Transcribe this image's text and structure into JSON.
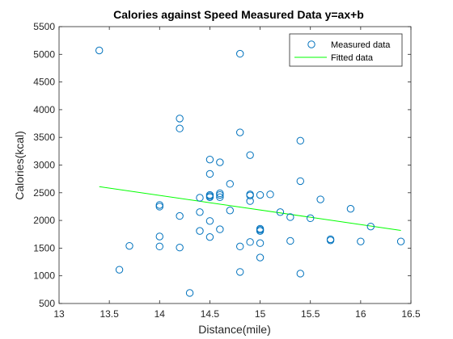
{
  "chart_data": {
    "type": "scatter",
    "title": "Calories against Speed Measured Data y=ax+b",
    "xlabel": "Distance(mile)",
    "ylabel": "Calories(kcal)",
    "xlim": [
      13,
      16.5
    ],
    "ylim": [
      500,
      5500
    ],
    "xticks": [
      "13",
      "13.5",
      "14",
      "14.5",
      "15",
      "15.5",
      "16",
      "16.5"
    ],
    "yticks": [
      "500",
      "1000",
      "1500",
      "2000",
      "2500",
      "3000",
      "3500",
      "4000",
      "4500",
      "5000",
      "5500"
    ],
    "grid": false,
    "legend_position": "top-right",
    "series": [
      {
        "name": "Measured data",
        "kind": "markers",
        "color": "#0072BD",
        "points": [
          [
            13.4,
            5070
          ],
          [
            13.6,
            1110
          ],
          [
            13.7,
            1540
          ],
          [
            14.0,
            2280
          ],
          [
            14.0,
            2250
          ],
          [
            14.0,
            1710
          ],
          [
            14.0,
            1530
          ],
          [
            14.2,
            3840
          ],
          [
            14.2,
            3660
          ],
          [
            14.2,
            2080
          ],
          [
            14.2,
            1510
          ],
          [
            14.3,
            690
          ],
          [
            14.4,
            2410
          ],
          [
            14.4,
            2150
          ],
          [
            14.4,
            1810
          ],
          [
            14.5,
            3100
          ],
          [
            14.5,
            2840
          ],
          [
            14.5,
            2460
          ],
          [
            14.5,
            2440
          ],
          [
            14.5,
            2420
          ],
          [
            14.5,
            1990
          ],
          [
            14.5,
            1700
          ],
          [
            14.6,
            3050
          ],
          [
            14.6,
            2490
          ],
          [
            14.6,
            2460
          ],
          [
            14.6,
            2420
          ],
          [
            14.6,
            1840
          ],
          [
            14.7,
            2660
          ],
          [
            14.7,
            2180
          ],
          [
            14.8,
            5010
          ],
          [
            14.8,
            3590
          ],
          [
            14.8,
            1530
          ],
          [
            14.8,
            1070
          ],
          [
            14.9,
            3180
          ],
          [
            14.9,
            2470
          ],
          [
            14.9,
            2450
          ],
          [
            14.9,
            2350
          ],
          [
            14.9,
            1610
          ],
          [
            15.0,
            2460
          ],
          [
            15.0,
            1850
          ],
          [
            15.0,
            1830
          ],
          [
            15.0,
            1810
          ],
          [
            15.0,
            1590
          ],
          [
            15.0,
            1330
          ],
          [
            15.1,
            2470
          ],
          [
            15.2,
            2150
          ],
          [
            15.3,
            2060
          ],
          [
            15.3,
            1630
          ],
          [
            15.4,
            3440
          ],
          [
            15.4,
            2710
          ],
          [
            15.4,
            1040
          ],
          [
            15.5,
            2040
          ],
          [
            15.6,
            2380
          ],
          [
            15.7,
            1660
          ],
          [
            15.7,
            1640
          ],
          [
            15.9,
            2210
          ],
          [
            16.0,
            1620
          ],
          [
            16.1,
            1890
          ],
          [
            16.4,
            1620
          ]
        ]
      },
      {
        "name": "Fitted data",
        "kind": "line",
        "color": "#00FF00",
        "points": [
          [
            13.4,
            2610
          ],
          [
            16.4,
            1820
          ]
        ]
      }
    ]
  }
}
